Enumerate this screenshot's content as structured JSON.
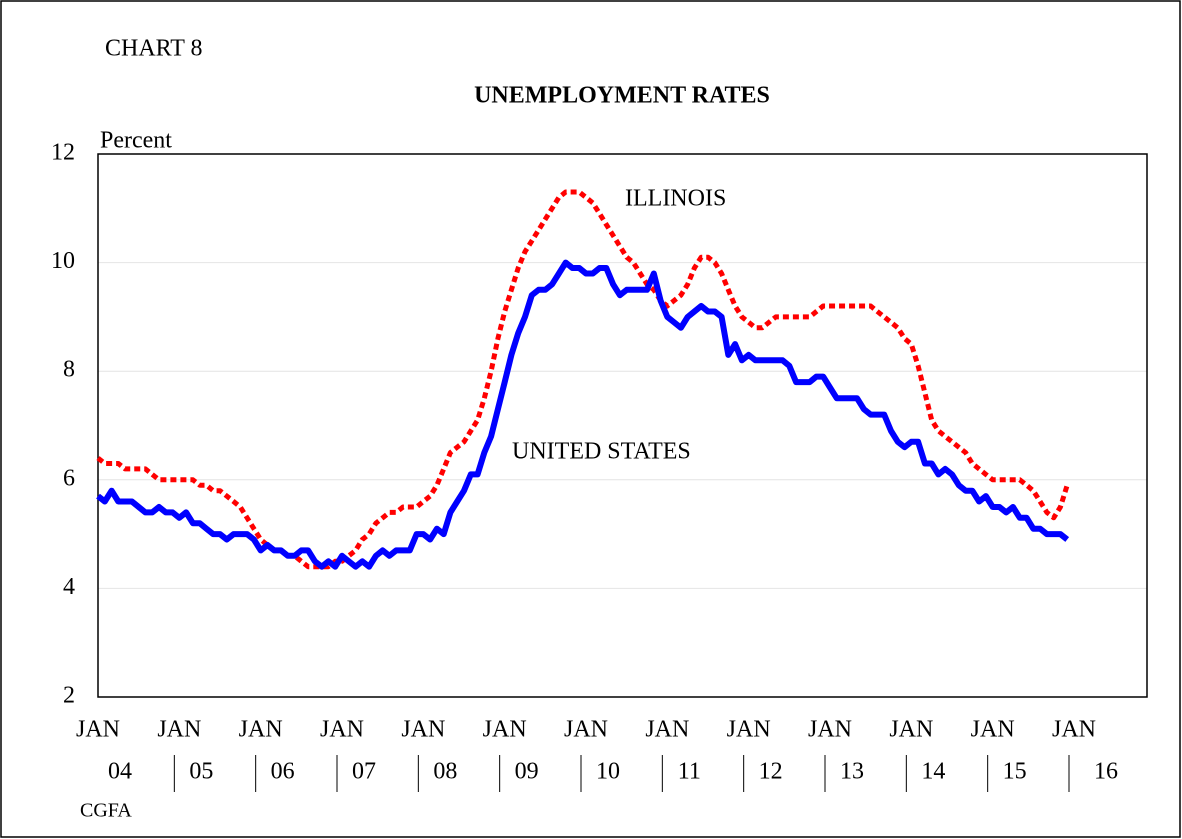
{
  "chart_data": {
    "type": "line",
    "chart_label": "CHART 8",
    "title": "UNEMPLOYMENT RATES",
    "y_label": "Percent",
    "source": "CGFA",
    "categories": [
      "JAN",
      null,
      null,
      null,
      null,
      null,
      null,
      null,
      null,
      null,
      null,
      null,
      "JAN",
      null,
      null,
      null,
      null,
      null,
      null,
      null,
      null,
      null,
      null,
      null,
      "JAN",
      null,
      null,
      null,
      null,
      null,
      null,
      null,
      null,
      null,
      null,
      null,
      "JAN",
      null,
      null,
      null,
      null,
      null,
      null,
      null,
      null,
      null,
      null,
      null,
      "JAN",
      null,
      null,
      null,
      null,
      null,
      null,
      null,
      null,
      null,
      null,
      null,
      "JAN",
      null,
      null,
      null,
      null,
      null,
      null,
      null,
      null,
      null,
      null,
      null,
      "JAN",
      null,
      null,
      null,
      null,
      null,
      null,
      null,
      null,
      null,
      null,
      null,
      "JAN",
      null,
      null,
      null,
      null,
      null,
      null,
      null,
      null,
      null,
      null,
      null,
      "JAN",
      null,
      null,
      null,
      null,
      null,
      null,
      null,
      null,
      null,
      null,
      null,
      "JAN",
      null,
      null,
      null,
      null,
      null,
      null,
      null,
      null,
      null,
      null,
      null,
      "JAN",
      null,
      null,
      null,
      null,
      null,
      null,
      null,
      null,
      null,
      null,
      null,
      "JAN",
      null,
      null,
      null,
      null,
      null,
      null,
      null,
      null,
      null,
      null,
      null,
      "JAN"
    ],
    "x_sublabels": [
      "04",
      "05",
      "06",
      "07",
      "08",
      "09",
      "10",
      "11",
      "12",
      "13",
      "14",
      "15",
      "16"
    ],
    "ylim": [
      2,
      12
    ],
    "yticks": [
      2,
      4,
      6,
      8,
      10,
      12
    ],
    "grid": true,
    "series": [
      {
        "name": "ILLINOIS",
        "color": "#ff0000",
        "dash": "dotted",
        "values": [
          6.4,
          6.3,
          6.3,
          6.3,
          6.2,
          6.2,
          6.2,
          6.2,
          6.1,
          6.0,
          6.0,
          6.0,
          6.0,
          6.0,
          6.0,
          5.9,
          5.9,
          5.8,
          5.8,
          5.7,
          5.6,
          5.5,
          5.3,
          5.1,
          4.9,
          4.8,
          4.7,
          4.7,
          4.6,
          4.6,
          4.5,
          4.4,
          4.4,
          4.4,
          4.4,
          4.5,
          4.5,
          4.6,
          4.7,
          4.9,
          5.0,
          5.2,
          5.3,
          5.4,
          5.4,
          5.5,
          5.5,
          5.5,
          5.6,
          5.7,
          5.9,
          6.2,
          6.5,
          6.6,
          6.7,
          6.9,
          7.1,
          7.5,
          8.0,
          8.6,
          9.1,
          9.5,
          9.9,
          10.2,
          10.4,
          10.6,
          10.8,
          11.0,
          11.2,
          11.3,
          11.3,
          11.3,
          11.2,
          11.1,
          10.9,
          10.7,
          10.5,
          10.3,
          10.1,
          10.0,
          9.8,
          9.6,
          9.5,
          9.3,
          9.2,
          9.3,
          9.4,
          9.6,
          9.9,
          10.1,
          10.1,
          10.0,
          9.8,
          9.5,
          9.2,
          9.0,
          8.9,
          8.8,
          8.8,
          8.9,
          9.0,
          9.0,
          9.0,
          9.0,
          9.0,
          9.0,
          9.1,
          9.2,
          9.2,
          9.2,
          9.2,
          9.2,
          9.2,
          9.2,
          9.2,
          9.1,
          9.0,
          8.9,
          8.8,
          8.6,
          8.5,
          8.1,
          7.6,
          7.1,
          6.9,
          6.8,
          6.7,
          6.6,
          6.5,
          6.3,
          6.2,
          6.1,
          6.0,
          6.0,
          6.0,
          6.0,
          6.0,
          5.9,
          5.8,
          5.6,
          5.4,
          5.3,
          5.5,
          5.9,
          null
        ]
      },
      {
        "name": "UNITED STATES",
        "color": "#0000ff",
        "dash": "solid",
        "values": [
          5.7,
          5.6,
          5.8,
          5.6,
          5.6,
          5.6,
          5.5,
          5.4,
          5.4,
          5.5,
          5.4,
          5.4,
          5.3,
          5.4,
          5.2,
          5.2,
          5.1,
          5.0,
          5.0,
          4.9,
          5.0,
          5.0,
          5.0,
          4.9,
          4.7,
          4.8,
          4.7,
          4.7,
          4.6,
          4.6,
          4.7,
          4.7,
          4.5,
          4.4,
          4.5,
          4.4,
          4.6,
          4.5,
          4.4,
          4.5,
          4.4,
          4.6,
          4.7,
          4.6,
          4.7,
          4.7,
          4.7,
          5.0,
          5.0,
          4.9,
          5.1,
          5.0,
          5.4,
          5.6,
          5.8,
          6.1,
          6.1,
          6.5,
          6.8,
          7.3,
          7.8,
          8.3,
          8.7,
          9.0,
          9.4,
          9.5,
          9.5,
          9.6,
          9.8,
          10.0,
          9.9,
          9.9,
          9.8,
          9.8,
          9.9,
          9.9,
          9.6,
          9.4,
          9.5,
          9.5,
          9.5,
          9.5,
          9.8,
          9.3,
          9.0,
          8.9,
          8.8,
          9.0,
          9.1,
          9.2,
          9.1,
          9.1,
          9.0,
          8.3,
          8.5,
          8.2,
          8.3,
          8.2,
          8.2,
          8.2,
          8.2,
          8.2,
          8.1,
          7.8,
          7.8,
          7.8,
          7.9,
          7.9,
          7.7,
          7.5,
          7.5,
          7.5,
          7.5,
          7.3,
          7.2,
          7.2,
          7.2,
          6.9,
          6.7,
          6.6,
          6.7,
          6.7,
          6.3,
          6.3,
          6.1,
          6.2,
          6.1,
          5.9,
          5.8,
          5.8,
          5.6,
          5.7,
          5.5,
          5.5,
          5.4,
          5.5,
          5.3,
          5.3,
          5.1,
          5.1,
          5.0,
          5.0,
          5.0,
          4.9,
          null
        ]
      }
    ]
  }
}
